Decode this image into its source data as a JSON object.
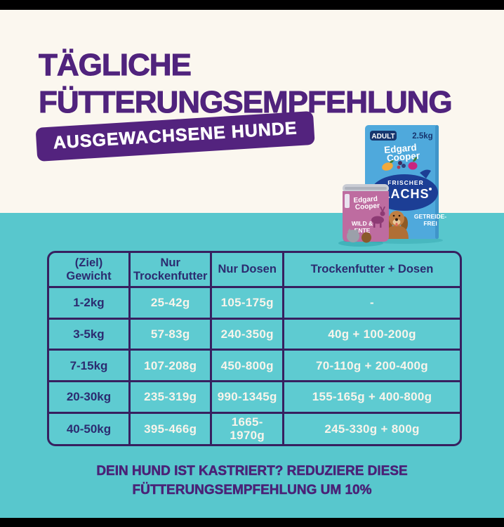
{
  "header": {
    "title_line1": "TÄGLICHE",
    "title_line2": "FÜTTERUNGSEMPFEHLUNG",
    "badge": "AUSGEWACHSENE HUNDE"
  },
  "products": {
    "bag": {
      "age_badge": "ADULT",
      "weight": "2.5kg",
      "brand_line1": "Edgard",
      "brand_line2": "Cooper",
      "variety_line1": "FRISCHER",
      "variety_line2": "LACHS",
      "claim_line1": "GETREIDE-",
      "claim_line2": "FREI"
    },
    "can": {
      "brand_line1": "Edgard",
      "brand_line2": "Cooper",
      "variety_line1": "WILD &",
      "variety_line2": "ENTE"
    }
  },
  "chart_data": {
    "type": "table",
    "title": "Tägliche Fütterungsempfehlung",
    "subtitle": "Ausgewachsene Hunde",
    "columns": [
      "(Ziel) Gewicht",
      "Nur Trockenfutter",
      "Nur Dosen",
      "Trockenfutter + Dosen"
    ],
    "rows": [
      [
        "1-2kg",
        "25-42g",
        "105-175g",
        "-"
      ],
      [
        "3-5kg",
        "57-83g",
        "240-350g",
        "40g + 100-200g"
      ],
      [
        "7-15kg",
        "107-208g",
        "450-800g",
        "70-110g + 200-400g"
      ],
      [
        "20-30kg",
        "235-319g",
        "990-1345g",
        "155-165g + 400-800g"
      ],
      [
        "40-50kg",
        "395-466g",
        "1665-1970g",
        "245-330g + 800g"
      ]
    ]
  },
  "note": {
    "line1": "DEIN HUND IST KASTRIERT? REDUZIERE DIESE",
    "line2": "FÜTTERUNGSEMPFEHLUNG UM 10%"
  },
  "colors": {
    "teal_background": "#58C7CD",
    "cream_background": "#FBF7EF",
    "heading_purple": "#50237D",
    "badge_background": "#53237E",
    "table_border_purple": "#37205F",
    "table_header_navy": "#2C2B70",
    "table_value_cream": "#F8F4EB",
    "bag_blue": "#4FA9DC",
    "fish_navy": "#1C3E95",
    "can_pink": "#BE6CA0"
  }
}
